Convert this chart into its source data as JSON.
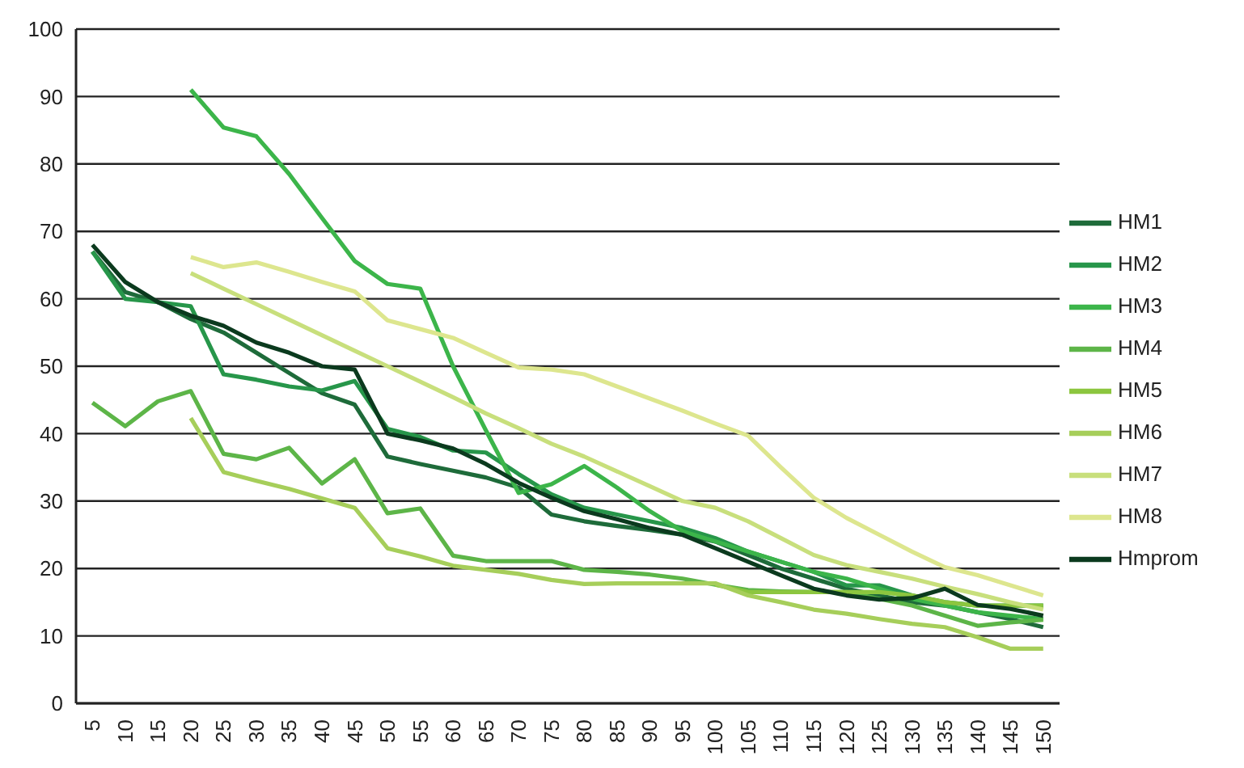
{
  "chart_data": {
    "type": "line",
    "categories": [
      "5",
      "10",
      "15",
      "20",
      "25",
      "30",
      "35",
      "40",
      "45",
      "50",
      "55",
      "60",
      "65",
      "70",
      "75",
      "80",
      "85",
      "90",
      "95",
      "100",
      "105",
      "110",
      "115",
      "120",
      "125",
      "130",
      "135",
      "140",
      "145",
      "150"
    ],
    "series": [
      {
        "name": "HM1",
        "color": "#1e6b3a",
        "values": [
          67,
          61,
          59.5,
          57,
          55,
          52,
          49,
          46,
          44.3,
          36.6,
          35.5,
          34.5,
          33.5,
          32,
          28,
          27,
          26.3,
          25.7,
          25,
          24,
          22,
          20,
          18.5,
          17,
          16,
          15,
          14.5,
          13.5,
          12.5,
          11.3
        ]
      },
      {
        "name": "HM2",
        "color": "#27964a",
        "values": [
          67,
          60,
          59.5,
          58.9,
          48.8,
          48,
          47,
          46.4,
          47.8,
          40.7,
          39.5,
          37.5,
          37.2,
          34,
          31,
          29,
          28,
          27,
          26,
          24.5,
          22.5,
          21,
          19.5,
          17.5,
          17.5,
          16,
          15,
          14.5,
          14.5,
          14.5
        ]
      },
      {
        "name": "HM3",
        "color": "#3cb54a",
        "values": [
          null,
          null,
          null,
          91,
          85.4,
          84.1,
          78.5,
          72,
          65.6,
          62.2,
          61.5,
          50,
          40.5,
          31.2,
          32.5,
          35.2,
          32,
          28.5,
          25.5,
          24,
          22.5,
          21,
          19.5,
          18.5,
          17,
          15.5,
          14.5,
          13.5,
          13,
          12.5
        ]
      },
      {
        "name": "HM4",
        "color": "#5db548",
        "values": [
          44.6,
          41.1,
          44.8,
          46.3,
          37,
          36.2,
          37.9,
          32.6,
          36.2,
          28.2,
          28.9,
          21.9,
          21.1,
          21.1,
          21.1,
          19.8,
          19.5,
          19.1,
          18.5,
          17.6,
          16.8,
          16.6,
          16.5,
          16.5,
          15.5,
          14.5,
          13,
          11.5,
          12,
          12.4
        ]
      },
      {
        "name": "HM5",
        "color": "#8cc63f",
        "values": [
          null,
          null,
          null,
          null,
          null,
          null,
          null,
          null,
          null,
          null,
          null,
          null,
          null,
          null,
          null,
          null,
          null,
          null,
          null,
          17.6,
          16.5,
          16.5,
          16.5,
          16.5,
          16.5,
          16,
          15,
          14.5,
          14.5,
          14.5
        ]
      },
      {
        "name": "HM6",
        "color": "#a6ce5a",
        "values": [
          null,
          null,
          null,
          42.3,
          34.3,
          33,
          31.8,
          30.4,
          29,
          23,
          21.8,
          20.4,
          19.8,
          19.2,
          18.3,
          17.7,
          17.8,
          17.8,
          17.8,
          17.8,
          16,
          15,
          13.9,
          13.3,
          12.5,
          11.8,
          11.3,
          9.8,
          8.1,
          8.1
        ]
      },
      {
        "name": "HM7",
        "color": "#c8df7c",
        "values": [
          null,
          null,
          null,
          63.8,
          61.5,
          59.2,
          56.9,
          54.6,
          52.3,
          50,
          47.7,
          45.4,
          43,
          40.8,
          38.5,
          36.6,
          34.4,
          32.2,
          30,
          29,
          27,
          24.5,
          22,
          20.5,
          19.5,
          18.5,
          17.3,
          16.2,
          15,
          13.9
        ]
      },
      {
        "name": "HM8",
        "color": "#dde68e",
        "values": [
          null,
          null,
          null,
          66.2,
          64.7,
          65.4,
          64,
          62.5,
          61.1,
          56.8,
          55.5,
          54.2,
          52,
          49.8,
          49.5,
          48.8,
          47,
          45.2,
          43.4,
          41.5,
          39.7,
          35,
          30.5,
          27.5,
          25,
          22.5,
          20.2,
          19,
          17.5,
          16
        ]
      },
      {
        "name": "Hmprom",
        "color": "#0b3a1e",
        "values": [
          68,
          62.5,
          59.5,
          57.5,
          56,
          53.5,
          52,
          50,
          49.5,
          40,
          39,
          37.8,
          35.5,
          32.7,
          30.5,
          28.5,
          27.3,
          26,
          25,
          23,
          21,
          19,
          17,
          16,
          15.4,
          15.6,
          17,
          14.6,
          14,
          13
        ]
      }
    ],
    "ylim": [
      0,
      100
    ],
    "yticks": [
      0,
      10,
      20,
      30,
      40,
      50,
      60,
      70,
      80,
      90,
      100
    ],
    "grid": "y",
    "legend": "right",
    "marker": "none",
    "line_style": "solid"
  }
}
